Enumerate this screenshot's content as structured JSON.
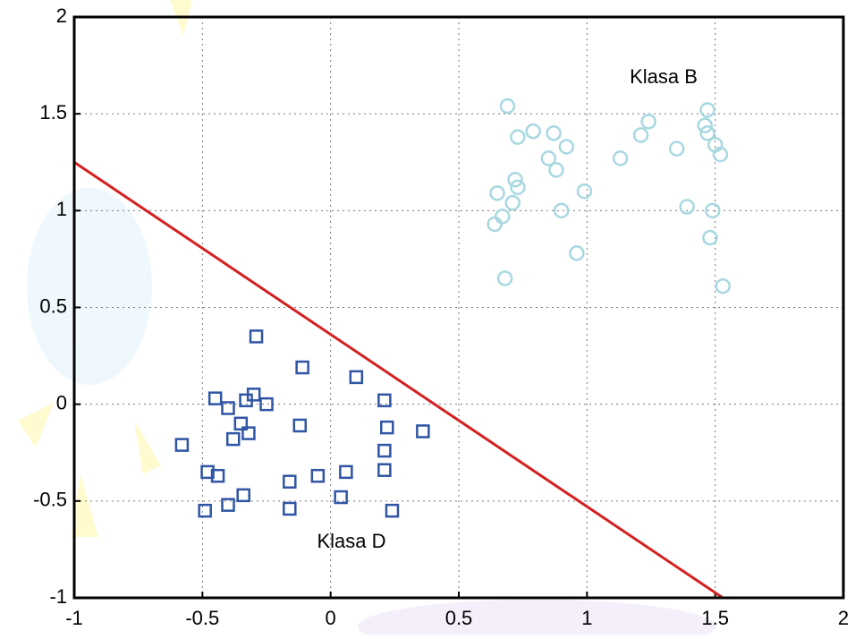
{
  "chart_data": {
    "type": "scatter",
    "xlim": [
      -1,
      2
    ],
    "ylim": [
      -1,
      2
    ],
    "xticks": [
      -1,
      -0.5,
      0,
      0.5,
      1,
      1.5,
      2
    ],
    "yticks": [
      -1,
      -0.5,
      0,
      0.5,
      1,
      1.5,
      2
    ],
    "grid": true,
    "annotations": [
      "Klasa B",
      "Klasa D"
    ],
    "series": [
      {
        "marker": "circle",
        "color": "#a8d8e0",
        "x": [
          0.69,
          0.73,
          0.79,
          0.87,
          0.92,
          0.85,
          0.88,
          0.72,
          0.73,
          0.65,
          0.71,
          0.67,
          0.64,
          0.9,
          0.99,
          0.96,
          0.68,
          1.13,
          1.21,
          1.24,
          1.35,
          1.39,
          1.47,
          1.46,
          1.47,
          1.5,
          1.52,
          1.49,
          1.48,
          1.53
        ],
        "y": [
          1.54,
          1.38,
          1.41,
          1.4,
          1.33,
          1.27,
          1.21,
          1.16,
          1.12,
          1.09,
          1.04,
          0.97,
          0.93,
          1.0,
          1.1,
          0.78,
          0.65,
          1.27,
          1.39,
          1.46,
          1.32,
          1.02,
          1.52,
          1.44,
          1.4,
          1.34,
          1.29,
          1.0,
          0.86,
          0.61
        ]
      },
      {
        "marker": "square",
        "color": "#2f55a4",
        "x": [
          -0.29,
          -0.11,
          0.1,
          -0.45,
          -0.4,
          -0.33,
          -0.3,
          -0.25,
          0.21,
          -0.58,
          -0.35,
          -0.38,
          -0.32,
          -0.12,
          0.22,
          0.36,
          -0.48,
          -0.44,
          0.21,
          0.21,
          0.06,
          -0.05,
          -0.16,
          -0.34,
          0.04,
          -0.4,
          -0.49,
          -0.16,
          0.24
        ],
        "y": [
          0.35,
          0.19,
          0.14,
          0.03,
          -0.02,
          0.02,
          0.05,
          0.0,
          0.02,
          -0.21,
          -0.1,
          -0.18,
          -0.15,
          -0.11,
          -0.12,
          -0.14,
          -0.35,
          -0.37,
          -0.24,
          -0.34,
          -0.35,
          -0.37,
          -0.4,
          -0.47,
          -0.48,
          -0.52,
          -0.55,
          -0.54,
          -0.55
        ]
      },
      {
        "marker": "line",
        "color": "#d42020",
        "x": [
          -1,
          1.53
        ],
        "y": [
          1.25,
          -1
        ]
      }
    ]
  }
}
